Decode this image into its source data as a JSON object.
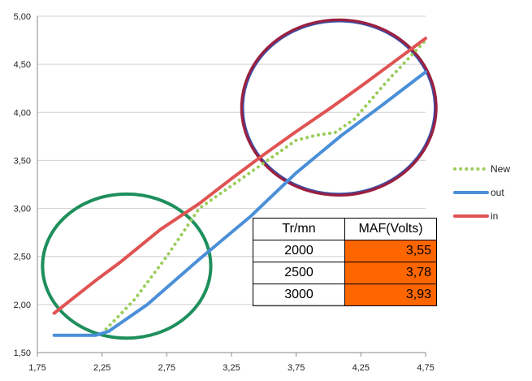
{
  "chart_data": {
    "type": "line",
    "xlim": [
      1.75,
      4.75
    ],
    "ylim": [
      1.5,
      5.0
    ],
    "x_ticks": [
      "1,75",
      "2,25",
      "2,75",
      "3,25",
      "3,75",
      "4,25",
      "4,75"
    ],
    "x_tick_values": [
      1.75,
      2.25,
      2.75,
      3.25,
      3.75,
      4.25,
      4.75
    ],
    "y_ticks": [
      "1,50",
      "2,00",
      "2,50",
      "3,00",
      "3,50",
      "4,00",
      "4,50",
      "5,00"
    ],
    "y_tick_values": [
      1.5,
      2.0,
      2.5,
      3.0,
      3.5,
      4.0,
      4.5,
      5.0
    ],
    "grid": "horizontal",
    "legend_position": "right",
    "series": [
      {
        "name": "New",
        "color": "#9acd5a",
        "style": "dotted",
        "x": [
          2.25,
          2.5,
          2.75,
          3.0,
          3.75,
          3.9,
          4.05,
          4.2,
          4.45,
          4.75
        ],
        "y": [
          1.7,
          2.05,
          2.5,
          3.0,
          3.71,
          3.76,
          3.79,
          3.93,
          4.32,
          4.75
        ]
      },
      {
        "name": "out",
        "color": "#4a8fd8",
        "style": "solid",
        "x": [
          1.88,
          2.2,
          2.3,
          2.6,
          3.0,
          3.4,
          3.75,
          4.1,
          4.4,
          4.75
        ],
        "y": [
          1.68,
          1.68,
          1.72,
          2.0,
          2.47,
          2.92,
          3.37,
          3.76,
          4.06,
          4.42
        ]
      },
      {
        "name": "in",
        "color": "#e05353",
        "style": "solid",
        "x": [
          1.88,
          2.2,
          2.4,
          2.7,
          3.0,
          3.25,
          3.5,
          3.75,
          4.0,
          4.25,
          4.5,
          4.75
        ],
        "y": [
          1.91,
          2.25,
          2.45,
          2.78,
          3.05,
          3.31,
          3.56,
          3.8,
          4.03,
          4.27,
          4.52,
          4.77
        ]
      }
    ],
    "annotations": [
      {
        "shape": "circle",
        "color": "#1e8f5c",
        "cx": 2.44,
        "cy": 2.4,
        "rx": 0.65,
        "ry": 0.75
      },
      {
        "shape": "circle",
        "color": "#9b2040",
        "cx": 4.08,
        "cy": 4.05,
        "rx": 0.75,
        "ry": 0.91
      }
    ]
  },
  "table": {
    "headers": [
      "Tr/mn",
      "MAF(Volts)"
    ],
    "rows": [
      [
        "2000",
        "3,55"
      ],
      [
        "2500",
        "3,78"
      ],
      [
        "3000",
        "3,93"
      ]
    ],
    "highlight_color": "#ff6600"
  }
}
